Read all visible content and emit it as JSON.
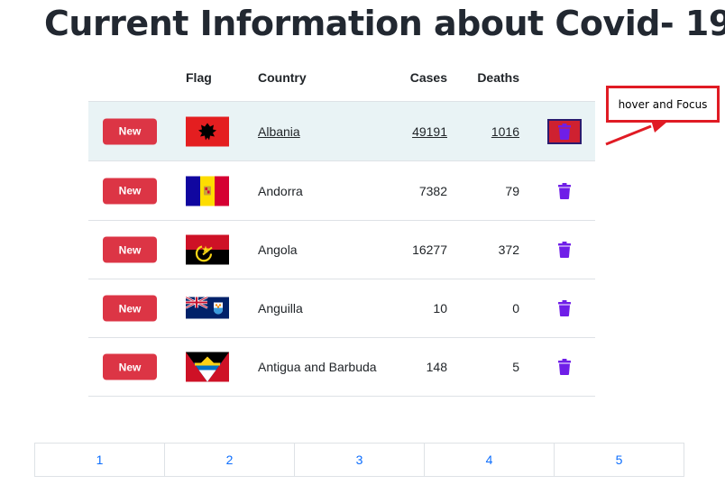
{
  "title": "Current Information about Covid- 19",
  "table": {
    "headers": {
      "flag": "Flag",
      "country": "Country",
      "cases": "Cases",
      "deaths": "Deaths"
    },
    "new_label": "New",
    "rows": [
      {
        "country": "Albania",
        "cases": "49191",
        "deaths": "1016",
        "flag_icon": "albania-flag-icon",
        "active": true
      },
      {
        "country": "Andorra",
        "cases": "7382",
        "deaths": "79",
        "flag_icon": "andorra-flag-icon"
      },
      {
        "country": "Angola",
        "cases": "16277",
        "deaths": "372",
        "flag_icon": "angola-flag-icon"
      },
      {
        "country": "Anguilla",
        "cases": "10",
        "deaths": "0",
        "flag_icon": "anguilla-flag-icon"
      },
      {
        "country": "Antigua and Barbuda",
        "cases": "148",
        "deaths": "5",
        "flag_icon": "antigua-and-barbuda-flag-icon"
      }
    ]
  },
  "annotation": {
    "text": "hover and Focus"
  },
  "pagination": {
    "pages": [
      "1",
      "2",
      "3",
      "4",
      "5"
    ]
  },
  "colors": {
    "new_button": "#dc3545",
    "delete_icon": "#6f1ee8",
    "link": "#0d6efd",
    "active_row": "#e9f3f5",
    "annotation": "#e01b24"
  }
}
